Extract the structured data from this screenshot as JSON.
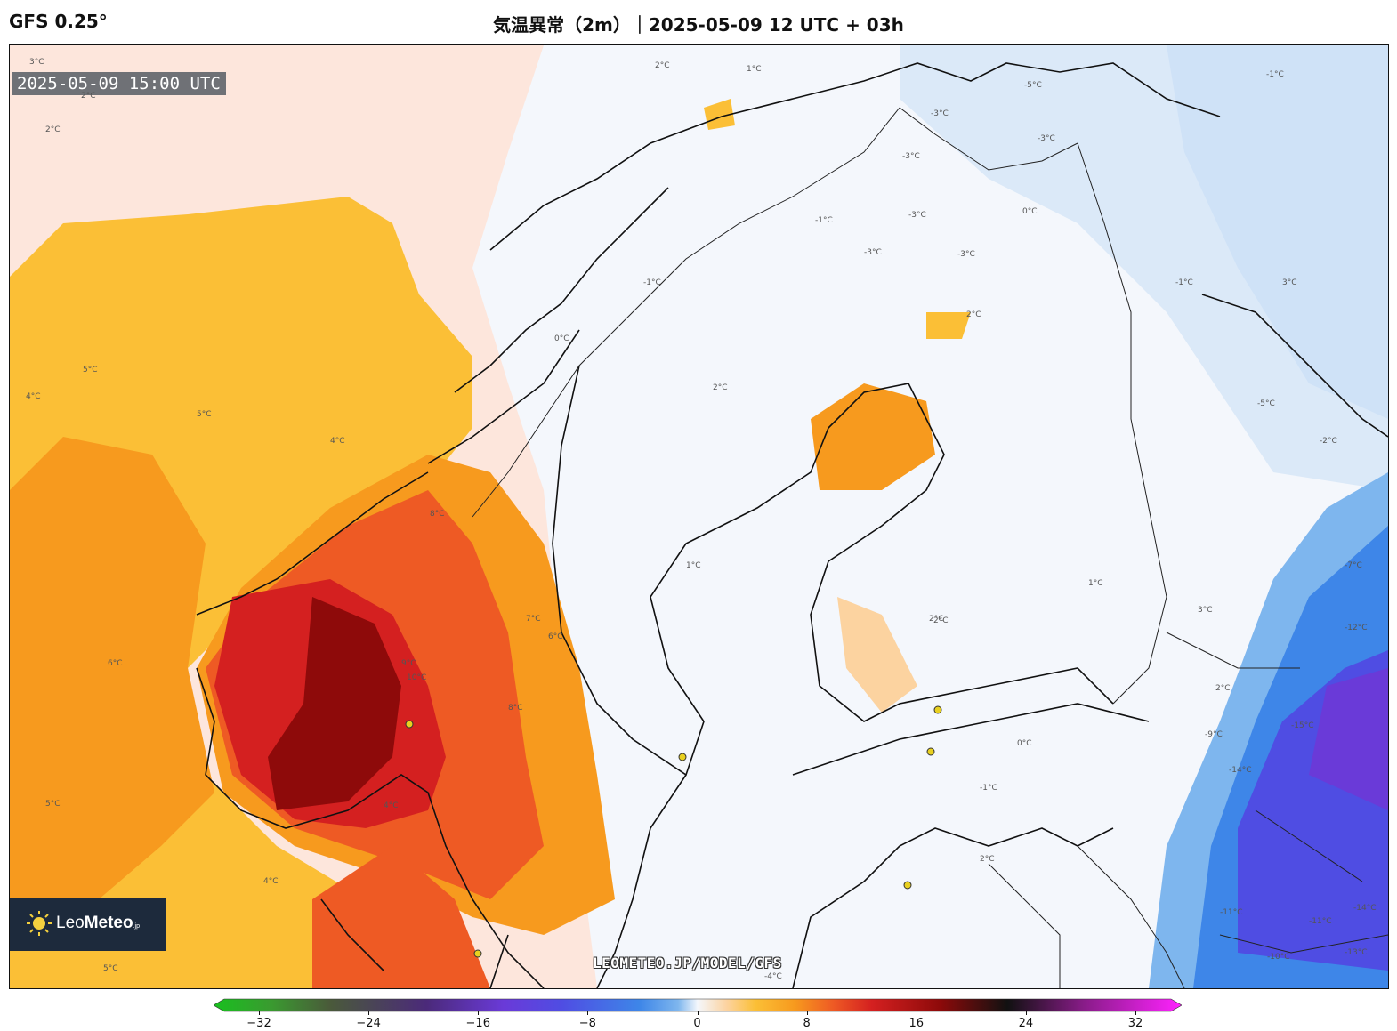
{
  "header": {
    "model": "GFS 0.25°",
    "title": "気温異常（2m）｜2025-05-09 12 UTC + 03h"
  },
  "map": {
    "valid_time": "2025-05-09 15:00 UTC",
    "watermark": "LEOMETEO.JP/MODEL/GFS",
    "logo": {
      "name_light": "Leo",
      "name_bold": "Meteo",
      "suffix": ".jp"
    },
    "contour_labels": [
      "3°C",
      "2°C",
      "2°C",
      "2°C",
      "1°C",
      "-1°C",
      "-3°C",
      "-5°C",
      "-3°C",
      "-3°C",
      "-3°C",
      "0°C",
      "-1°C",
      "-1°C",
      "-3°C",
      "0°C",
      "-1°C",
      "2°C",
      "3°C",
      "4°C",
      "5°C",
      "5°C",
      "4°C",
      "6°C",
      "5°C",
      "4°C",
      "4°C",
      "5°C",
      "8°C",
      "9°C",
      "10°C",
      "7°C",
      "6°C",
      "8°C",
      "2°C",
      "1°C",
      "2°C",
      "-2°C",
      "3°C",
      "-5°C",
      "-7°C",
      "-11°C",
      "-13°C",
      "-14°C",
      "-15°C",
      "-9°C",
      "-12°C",
      "-11°C",
      "-10°C",
      "-14°C",
      "2°C",
      "0°C",
      "-1°C",
      "2°C",
      "2°C",
      "1°C",
      "-4°C",
      "-3°C"
    ]
  },
  "colorbar": {
    "label": "°C",
    "min": -32,
    "max": 32,
    "ticks": [
      "−32",
      "−24",
      "−16",
      "−8",
      "0",
      "8",
      "16",
      "24",
      "32"
    ]
  },
  "colors": {
    "warm_1": "#fde6dc",
    "warm_2": "#fcd3a0",
    "warm_3": "#fbbf36",
    "warm_4": "#f79a1e",
    "warm_5": "#ee5a24",
    "warm_6": "#d42020",
    "warm_7": "#8e0a0a",
    "cool_1": "#e8f1fb",
    "cool_2": "#cfe2f7",
    "cool_3": "#7eb6ee",
    "cool_4": "#3e86e8",
    "cool_5": "#4f4de3",
    "cool_6": "#6a3ad8"
  }
}
